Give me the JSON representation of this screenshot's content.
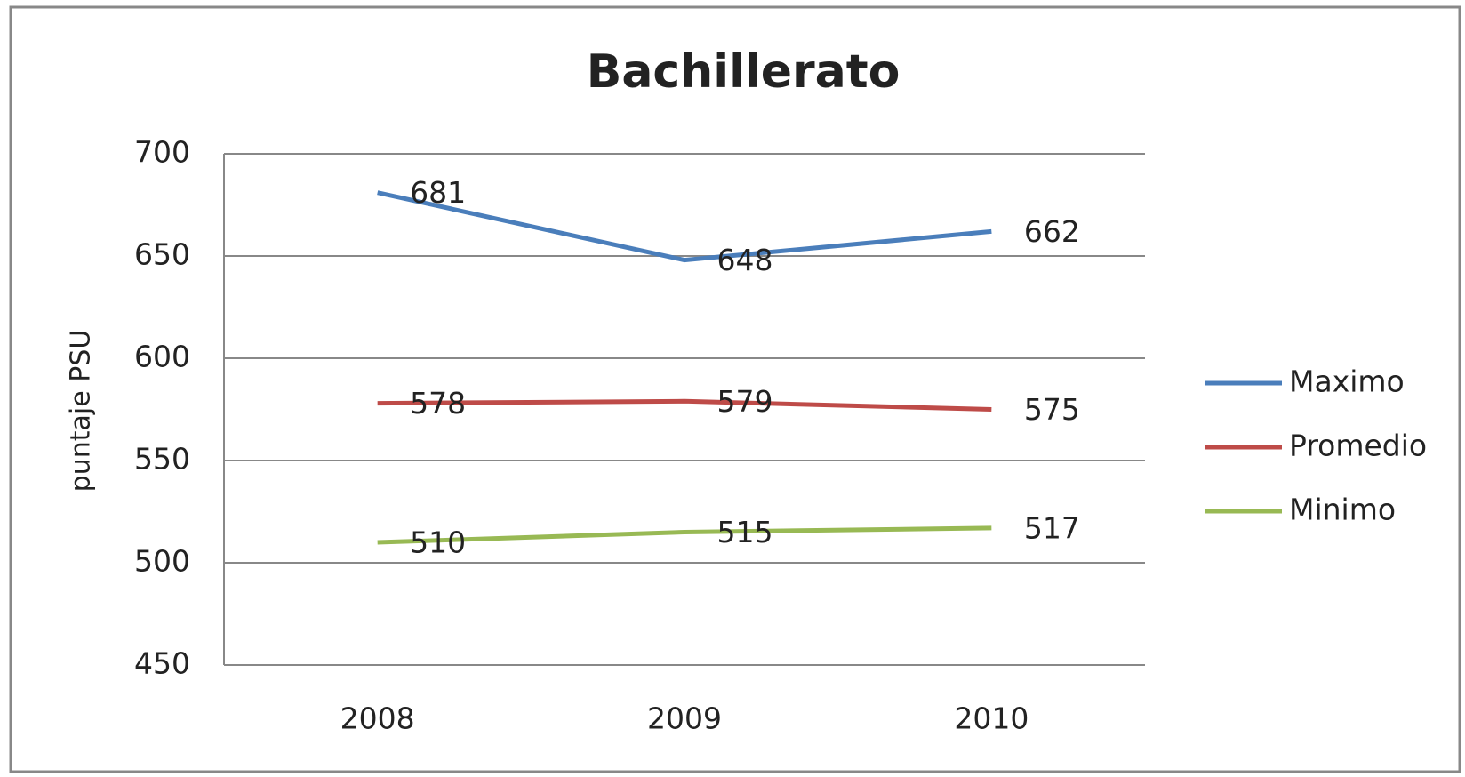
{
  "chart_data": {
    "type": "line",
    "title": "Bachillerato",
    "y_label": "puntaje PSU",
    "categories": [
      "2008",
      "2009",
      "2010"
    ],
    "series": [
      {
        "name": "Maximo",
        "color": "#4a7ebb",
        "values": [
          681,
          648,
          662
        ]
      },
      {
        "name": "Promedio",
        "color": "#be4b48",
        "values": [
          578,
          579,
          575
        ]
      },
      {
        "name": "Minimo",
        "color": "#98b954",
        "values": [
          510,
          515,
          517
        ]
      }
    ],
    "ylim": [
      450,
      700
    ],
    "yticks": [
      450,
      500,
      550,
      600,
      650,
      700
    ],
    "grid": true,
    "legend": "right"
  }
}
